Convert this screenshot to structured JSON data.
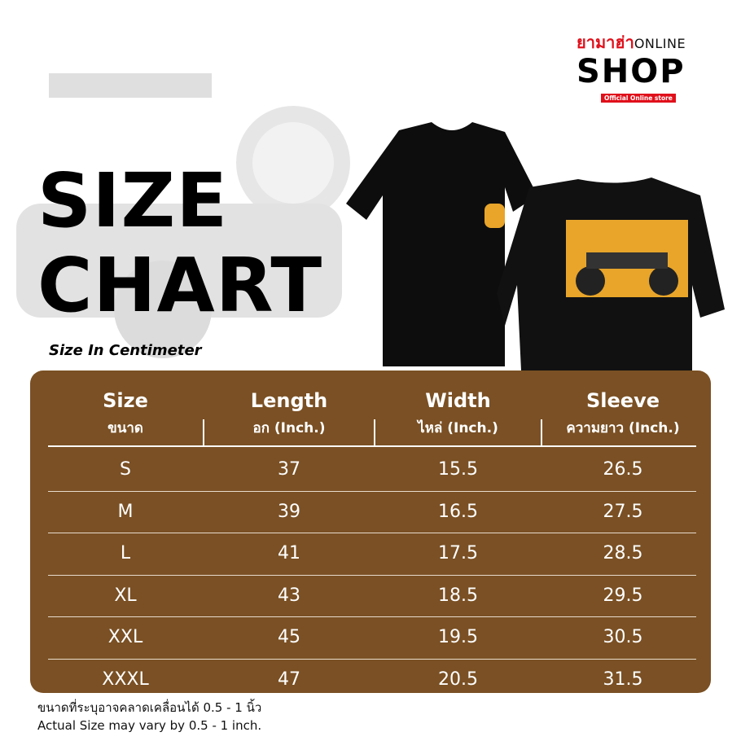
{
  "logo": {
    "thai": "ยามาฮ่า",
    "online": "ONLINE",
    "shop": "SHOP",
    "tagline": "Official Online store"
  },
  "title": {
    "line1": "SIZE",
    "line2": "CHART"
  },
  "subtitle": "Size In Centimeter",
  "colors": {
    "table_bg": "#7a5024",
    "logo_red": "#e0101b",
    "shirt": "#0d0d0d",
    "print": "#e8a52a"
  },
  "table": {
    "headers": [
      {
        "en": "Size",
        "th": "ขนาด"
      },
      {
        "en": "Length",
        "th": "อก (Inch.)"
      },
      {
        "en": "Width",
        "th": "ไหล่ (Inch.)"
      },
      {
        "en": "Sleeve",
        "th": "ความยาว (Inch.)"
      }
    ],
    "rows": [
      [
        "S",
        "37",
        "15.5",
        "26.5"
      ],
      [
        "M",
        "39",
        "16.5",
        "27.5"
      ],
      [
        "L",
        "41",
        "17.5",
        "28.5"
      ],
      [
        "XL",
        "43",
        "18.5",
        "29.5"
      ],
      [
        "XXL",
        "45",
        "19.5",
        "30.5"
      ],
      [
        "XXXL",
        "47",
        "20.5",
        "31.5"
      ]
    ]
  },
  "notes": {
    "th": "ขนาดที่ระบุอาจคลาดเคลื่อนได้ 0.5 - 1 นิ้ว",
    "en": "Actual Size may vary by 0.5 - 1 inch."
  }
}
